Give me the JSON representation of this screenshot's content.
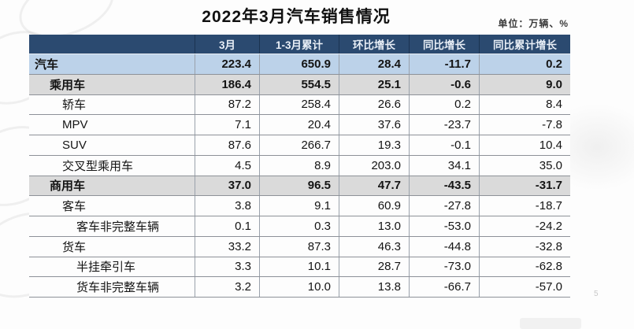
{
  "page": {
    "title": "2022年3月汽车销售情况",
    "unit_label": "单位：万辆、%",
    "page_number": "5"
  },
  "colors": {
    "header_bg": "#2b4a70",
    "header_text": "#e8eef6",
    "row_blue": "#bcd2e9",
    "row_gray": "#dadada"
  },
  "table": {
    "columns": [
      "",
      "3月",
      "1-3月累计",
      "环比增长",
      "同比增长",
      "同比累计增长"
    ],
    "rows": [
      {
        "label": "汽车",
        "indent": 0,
        "bold": true,
        "shade": "blue",
        "values": [
          "223.4",
          "650.9",
          "28.4",
          "-11.7",
          "0.2"
        ]
      },
      {
        "label": "乘用车",
        "indent": 1,
        "bold": true,
        "shade": "gray",
        "values": [
          "186.4",
          "554.5",
          "25.1",
          "-0.6",
          "9.0"
        ]
      },
      {
        "label": "轿车",
        "indent": 2,
        "bold": false,
        "shade": "white",
        "values": [
          "87.2",
          "258.4",
          "26.6",
          "0.2",
          "8.4"
        ]
      },
      {
        "label": "MPV",
        "indent": 2,
        "bold": false,
        "shade": "white",
        "values": [
          "7.1",
          "20.4",
          "37.6",
          "-23.7",
          "-7.8"
        ]
      },
      {
        "label": "SUV",
        "indent": 2,
        "bold": false,
        "shade": "white",
        "values": [
          "87.6",
          "266.7",
          "19.3",
          "-0.1",
          "10.4"
        ]
      },
      {
        "label": "交叉型乘用车",
        "indent": 2,
        "bold": false,
        "shade": "white",
        "values": [
          "4.5",
          "8.9",
          "203.0",
          "34.1",
          "35.0"
        ]
      },
      {
        "label": "商用车",
        "indent": 1,
        "bold": true,
        "shade": "gray",
        "values": [
          "37.0",
          "96.5",
          "47.7",
          "-43.5",
          "-31.7"
        ]
      },
      {
        "label": "客车",
        "indent": 2,
        "bold": false,
        "shade": "white",
        "values": [
          "3.8",
          "9.1",
          "60.9",
          "-27.8",
          "-18.7"
        ]
      },
      {
        "label": "客车非完整车辆",
        "indent": 3,
        "bold": false,
        "shade": "white",
        "values": [
          "0.1",
          "0.3",
          "13.0",
          "-53.0",
          "-24.2"
        ]
      },
      {
        "label": "货车",
        "indent": 2,
        "bold": false,
        "shade": "white",
        "values": [
          "33.2",
          "87.3",
          "46.3",
          "-44.8",
          "-32.8"
        ]
      },
      {
        "label": "半挂牵引车",
        "indent": 3,
        "bold": false,
        "shade": "white",
        "values": [
          "3.3",
          "10.1",
          "28.7",
          "-73.0",
          "-62.8"
        ]
      },
      {
        "label": "货车非完整车辆",
        "indent": 3,
        "bold": false,
        "shade": "white",
        "values": [
          "3.2",
          "10.0",
          "13.8",
          "-66.7",
          "-57.0"
        ]
      }
    ]
  }
}
